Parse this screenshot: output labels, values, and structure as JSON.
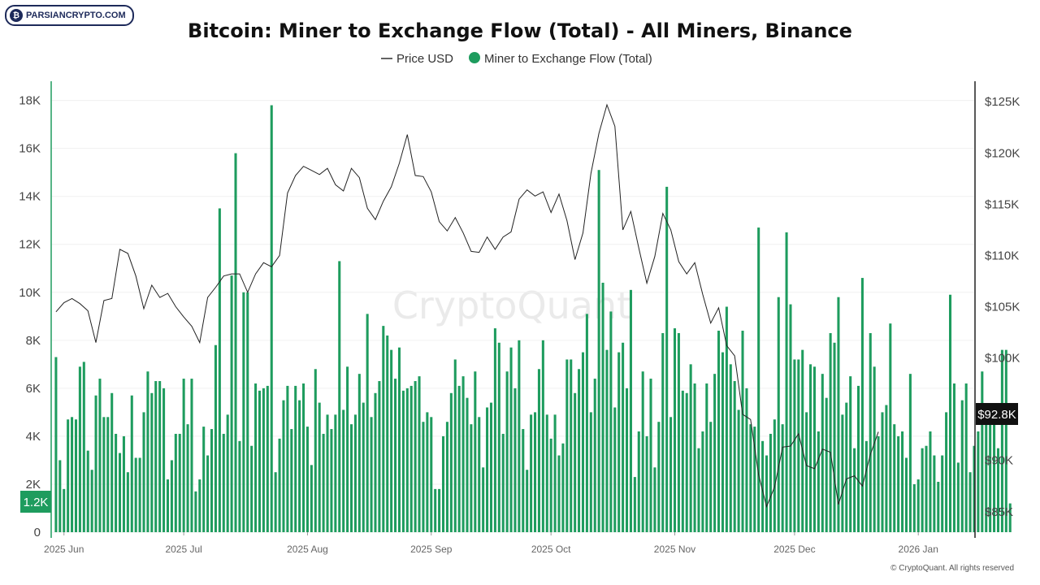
{
  "logo": {
    "text": "PARSIANCRYPTO.COM",
    "icon": "bitcoin-coin-icon"
  },
  "watermark": "CryptoQuant",
  "copyright": "© CryptoQuant. All rights reserved",
  "chart_data": {
    "type": "bar+line",
    "title": "Bitcoin: Miner to Exchange Flow (Total) - All Miners, Binance",
    "legend": [
      {
        "label": "Price USD",
        "kind": "line",
        "color": "#222222"
      },
      {
        "label": "Miner to Exchange Flow (Total)",
        "kind": "dot",
        "color": "#1e9c5e"
      }
    ],
    "legend_position": "top-center",
    "grid": true,
    "x_axis": {
      "type": "date",
      "start": "2025-05-29",
      "end": "2026-01-15",
      "tick_labels": [
        "2025 Jun",
        "2025 Jul",
        "2025 Aug",
        "2025 Sep",
        "2025 Oct",
        "2025 Nov",
        "2025 Dec",
        "2026 Jan"
      ],
      "tick_dates": [
        "2025-06-01",
        "2025-07-01",
        "2025-08-01",
        "2025-09-01",
        "2025-10-01",
        "2025-11-01",
        "2025-12-01",
        "2026-01-01"
      ]
    },
    "y_left": {
      "label": "",
      "min": 0,
      "max": 18800,
      "ticks": [
        0,
        2000,
        4000,
        6000,
        8000,
        10000,
        12000,
        14000,
        16000,
        18000
      ],
      "tick_labels": [
        "0",
        "2K",
        "4K",
        "6K",
        "8K",
        "10K",
        "12K",
        "14K",
        "16K",
        "18K"
      ],
      "current_label": "1.2K",
      "current_value": 1200,
      "color": "#1e9c5e"
    },
    "y_right": {
      "label": "",
      "min": 83000,
      "max": 127000,
      "ticks": [
        85000,
        90000,
        95000,
        100000,
        105000,
        110000,
        115000,
        120000,
        125000
      ],
      "tick_labels": [
        "$85K",
        "$90K",
        "$95K",
        "$100K",
        "$105K",
        "$110K",
        "$115K",
        "$120K",
        "$125K"
      ],
      "current_label": "$92.8K",
      "current_value": 92800
    },
    "flow": {
      "name": "Miner to Exchange Flow (Total)",
      "color": "#1e9c5e",
      "start_date": "2025-05-30",
      "interval_days": 1,
      "values": [
        7300,
        3000,
        1800,
        4700,
        4800,
        4700,
        6900,
        7100,
        3400,
        2600,
        5700,
        6400,
        4800,
        4800,
        5800,
        4100,
        3300,
        4000,
        2500,
        5700,
        3100,
        3100,
        5000,
        6700,
        5800,
        6300,
        6300,
        6000,
        2200,
        3000,
        4100,
        4100,
        6400,
        4500,
        6400,
        1700,
        2200,
        4400,
        3200,
        4300,
        7800,
        13500,
        4100,
        4900,
        10700,
        15800,
        3800,
        10000,
        10000,
        3600,
        6200,
        5900,
        6000,
        6100,
        17800,
        2500,
        3900,
        5500,
        6100,
        4300,
        6100,
        5500,
        6200,
        4400,
        2800,
        6800,
        5400,
        4100,
        4900,
        4300,
        4900,
        11300,
        5100,
        6900,
        4500,
        4900,
        6600,
        5400,
        9100,
        4800,
        5800,
        6300,
        8600,
        8200,
        7600,
        6400,
        7700,
        5900,
        6000,
        6100,
        6300,
        6500,
        4600,
        5000,
        4800,
        1800,
        1800,
        4000,
        4600,
        5800,
        7200,
        6100,
        6500,
        5600,
        4500,
        6700,
        4800,
        2700,
        5200,
        5400,
        8500,
        7900,
        4100,
        6700,
        7700,
        6000,
        8000,
        4300,
        2600,
        4900,
        5000,
        6800,
        8000,
        4900,
        3900,
        4900,
        3200,
        3700,
        7200,
        7200,
        5800,
        6800,
        7500,
        9100,
        5000,
        6400,
        15100,
        10400,
        7600,
        9200,
        5200,
        7500,
        7900,
        6000,
        10100,
        2300,
        4200,
        6700,
        4000,
        6400,
        2700,
        4600,
        8300,
        14400,
        4800,
        8500,
        8300,
        5900,
        5800,
        7000,
        6200,
        3500,
        4200,
        6200,
        4600,
        6600,
        8400,
        7500,
        9400,
        7000,
        6300,
        5100,
        8400,
        6000,
        4500,
        4400,
        12700,
        3800,
        3200,
        4100,
        4700,
        9800,
        4500,
        12500,
        9500,
        7200,
        7200,
        7600,
        5000,
        7000,
        6900,
        4200,
        6600,
        5600,
        8300,
        7900,
        9800,
        4900,
        5400,
        6500,
        3500,
        6100,
        10600,
        3800,
        8300,
        6900,
        4000,
        5000,
        5300,
        8700,
        4500,
        4000,
        4200,
        3100,
        6600,
        2000,
        2200,
        3500,
        3600,
        4200,
        3200,
        2100,
        3200,
        5000,
        9900,
        6200,
        2900,
        5500,
        6200,
        2500,
        3600,
        4200,
        6700,
        5000,
        4800,
        4800,
        3500,
        7600,
        7600,
        1200
      ]
    },
    "price": {
      "name": "Price USD",
      "color": "#222222",
      "start_date": "2025-05-30",
      "interval_days": 2,
      "values": [
        104500,
        105400,
        105800,
        105300,
        104600,
        101500,
        105600,
        105800,
        110600,
        110200,
        108000,
        104800,
        107100,
        105900,
        106300,
        105000,
        104000,
        103100,
        101500,
        105900,
        106900,
        108000,
        108200,
        108200,
        106400,
        108200,
        109300,
        108900,
        110000,
        116100,
        117800,
        118700,
        118300,
        117900,
        118500,
        116900,
        116300,
        118500,
        117600,
        114600,
        113500,
        115300,
        116700,
        119000,
        121800,
        117800,
        117700,
        116200,
        113300,
        112400,
        113700,
        112200,
        110400,
        110300,
        111800,
        110600,
        111800,
        112300,
        115500,
        116400,
        115800,
        116200,
        114200,
        116000,
        113400,
        109600,
        112200,
        118000,
        121900,
        124700,
        122600,
        112500,
        114300,
        110700,
        107300,
        109900,
        114100,
        112500,
        109400,
        108200,
        109300,
        106200,
        103400,
        104900,
        101200,
        100200,
        94500,
        94000,
        88600,
        85500,
        87400,
        91300,
        91400,
        92600,
        89500,
        89200,
        91100,
        90800,
        85700,
        88200,
        88500,
        87500,
        90600,
        92800
      ]
    }
  }
}
